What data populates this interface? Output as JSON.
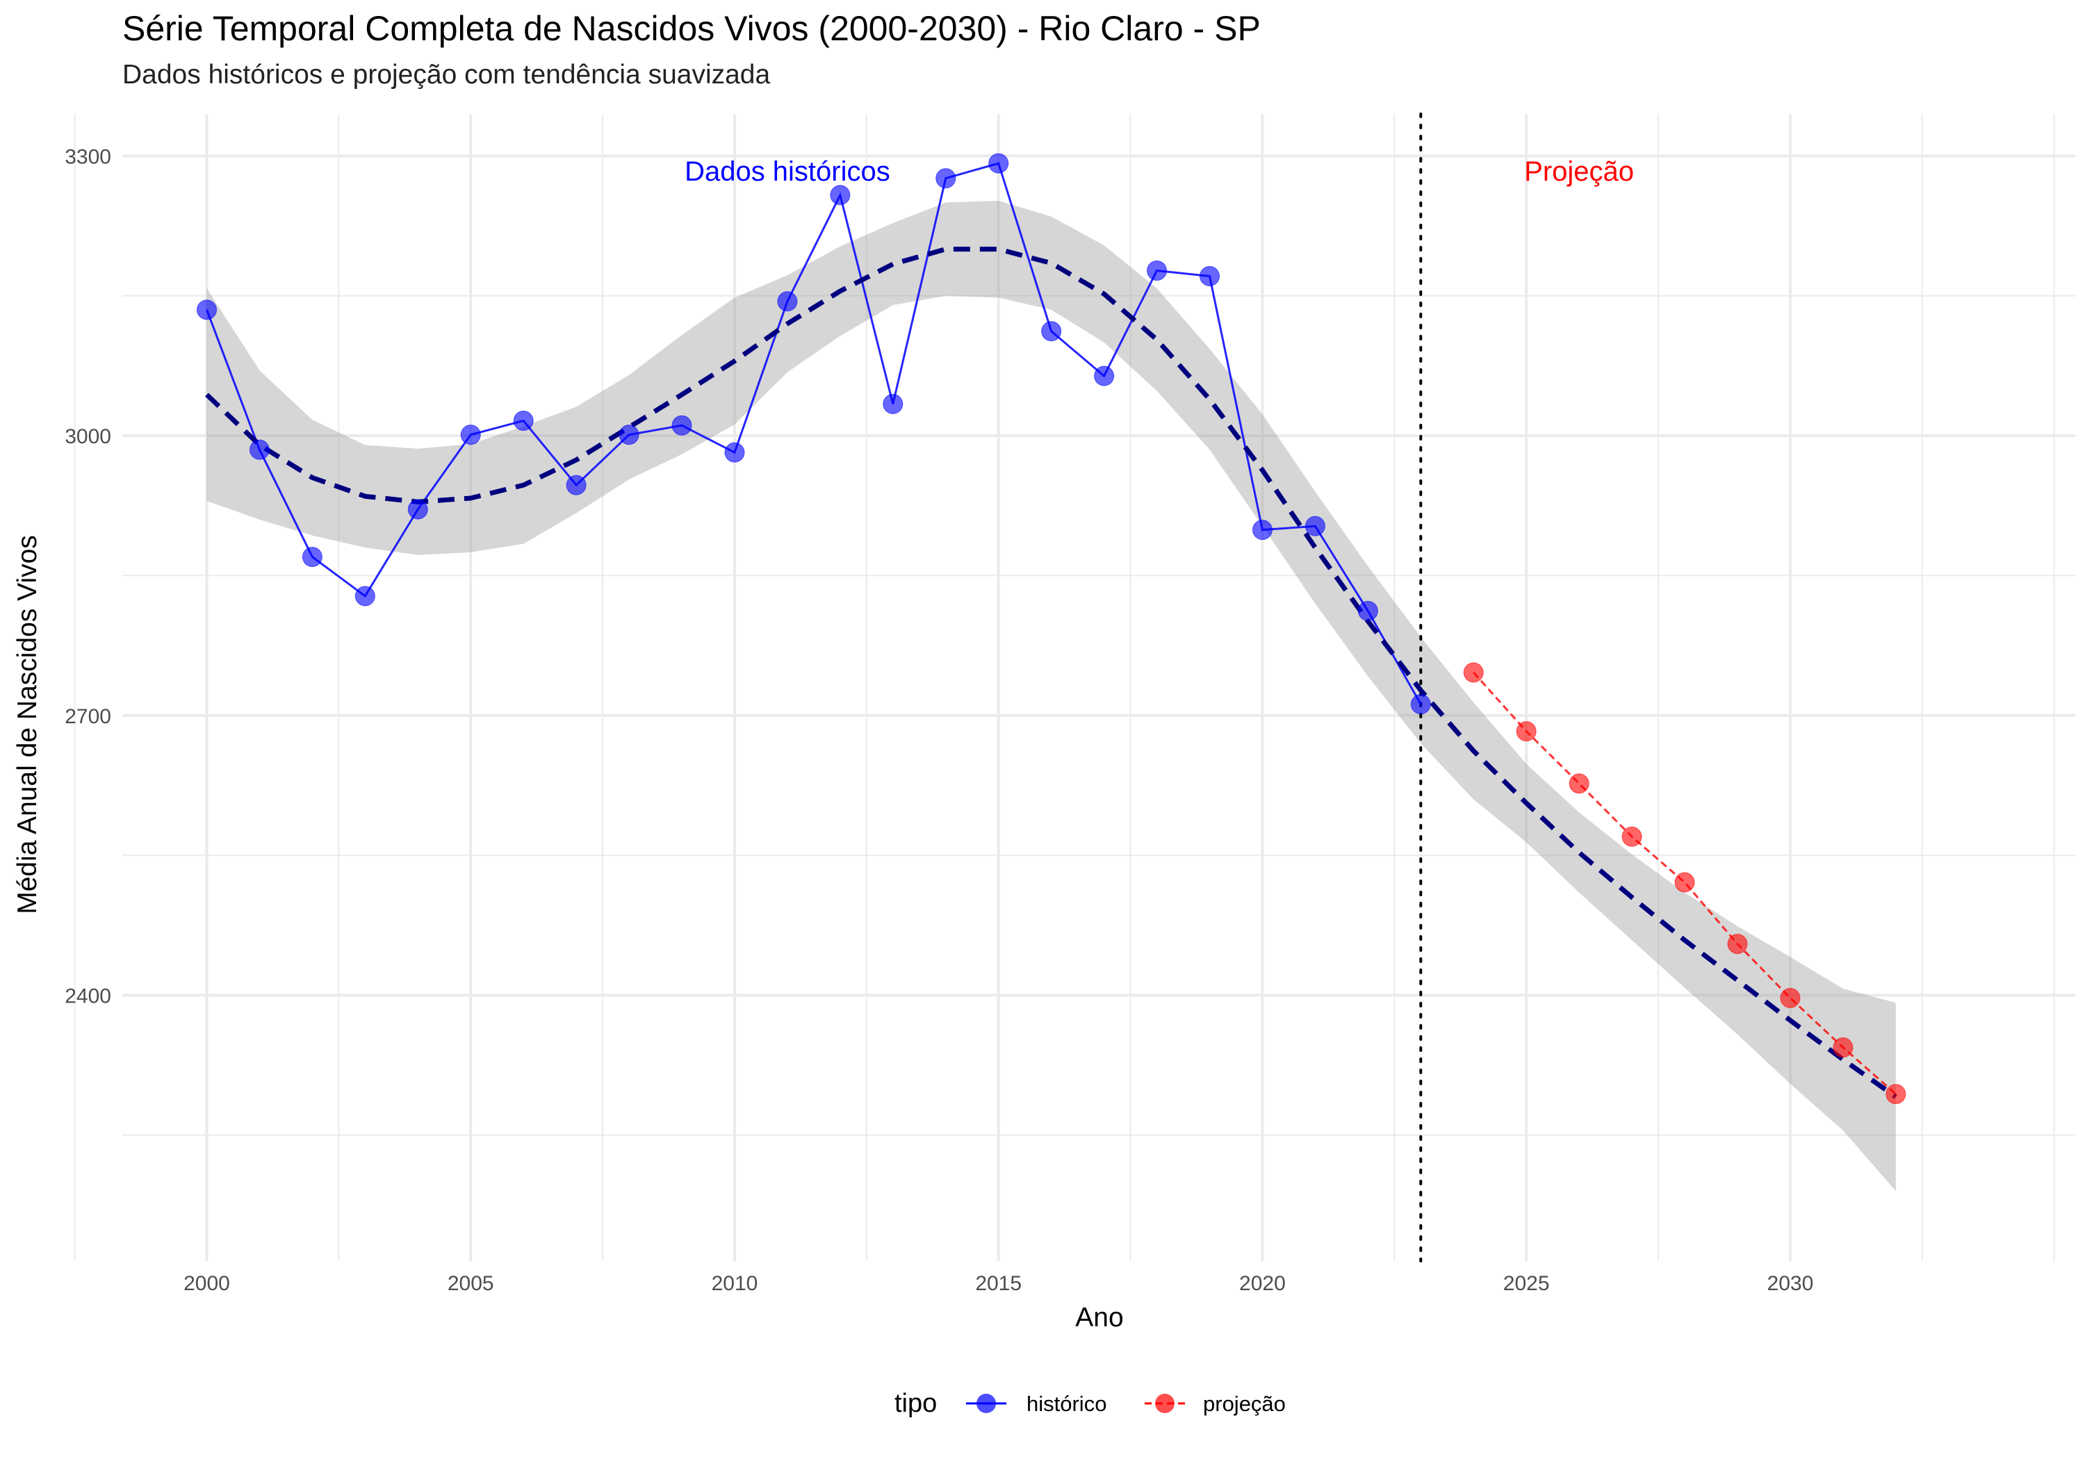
{
  "chart_data": {
    "type": "line",
    "title": "Série Temporal Completa de Nascidos Vivos (2000-2030) -  Rio Claro - SP",
    "subtitle": "Dados históricos e projeção com tendência suavizada",
    "xlabel": "Ano",
    "ylabel": "Média Anual de Nascidos Vivos",
    "xlim": [
      1998.4,
      2035.4
    ],
    "ylim": [
      2115,
      3345
    ],
    "x_ticks": [
      2000,
      2005,
      2010,
      2015,
      2020,
      2025,
      2030
    ],
    "y_ticks": [
      2400,
      2700,
      3000,
      3300
    ],
    "grid": true,
    "legend_position": "bottom",
    "legend_title": "tipo",
    "vline_x": 2023,
    "annotations": [
      {
        "text": "Dados históricos",
        "x": 2011,
        "y": 3290,
        "color": "#0000ff"
      },
      {
        "text": "Projeção",
        "x": 2026,
        "y": 3290,
        "color": "#ff0000"
      }
    ],
    "series": [
      {
        "name": "histórico",
        "color": "#0000ff",
        "x": [
          2000,
          2001,
          2002,
          2003,
          2004,
          2005,
          2006,
          2007,
          2008,
          2009,
          2010,
          2011,
          2012,
          2013,
          2014,
          2015,
          2016,
          2017,
          2018,
          2019,
          2020,
          2021,
          2022,
          2023
        ],
        "y": [
          3135,
          2985,
          2870,
          2828,
          2921,
          3001,
          3016,
          2947,
          3001,
          3011,
          2982,
          3144,
          3258,
          3034,
          3276,
          3292,
          3112,
          3064,
          3177,
          3171,
          2899,
          2903,
          2812,
          2712
        ]
      },
      {
        "name": "projeção",
        "color": "#ff0000",
        "x": [
          2024,
          2025,
          2026,
          2027,
          2028,
          2029,
          2030,
          2031,
          2032
        ],
        "y": [
          2746,
          2683,
          2627,
          2570,
          2521,
          2455,
          2397,
          2344,
          2294
        ]
      }
    ],
    "smooth_trend": {
      "color": "#00007f",
      "x": [
        2000,
        2001,
        2002,
        2003,
        2004,
        2005,
        2006,
        2007,
        2008,
        2009,
        2010,
        2011,
        2012,
        2013,
        2014,
        2015,
        2016,
        2017,
        2018,
        2019,
        2020,
        2021,
        2022,
        2023,
        2024,
        2025,
        2026,
        2027,
        2028,
        2029,
        2030,
        2031,
        2032
      ],
      "y": [
        3044,
        2990,
        2955,
        2935,
        2929,
        2933,
        2947,
        2974,
        3009,
        3044,
        3080,
        3120,
        3155,
        3184,
        3200,
        3200,
        3185,
        3152,
        3103,
        3039,
        2963,
        2880,
        2801,
        2727,
        2662,
        2606,
        2553,
        2505,
        2459,
        2416,
        2373,
        2331,
        2291
      ],
      "ci_lower": [
        2930,
        2910,
        2893,
        2880,
        2872,
        2875,
        2884,
        2917,
        2953,
        2980,
        3012,
        3068,
        3107,
        3140,
        3150,
        3148,
        3135,
        3100,
        3048,
        2985,
        2903,
        2820,
        2742,
        2670,
        2610,
        2564,
        2510,
        2459,
        2408,
        2358,
        2305,
        2255,
        2190
      ],
      "ci_upper": [
        3158,
        3070,
        3017,
        2990,
        2986,
        2991,
        3010,
        3031,
        3065,
        3108,
        3148,
        3172,
        3203,
        3228,
        3250,
        3252,
        3235,
        3204,
        3158,
        3093,
        3023,
        2940,
        2860,
        2784,
        2714,
        2648,
        2596,
        2551,
        2510,
        2474,
        2441,
        2407,
        2392
      ]
    }
  }
}
